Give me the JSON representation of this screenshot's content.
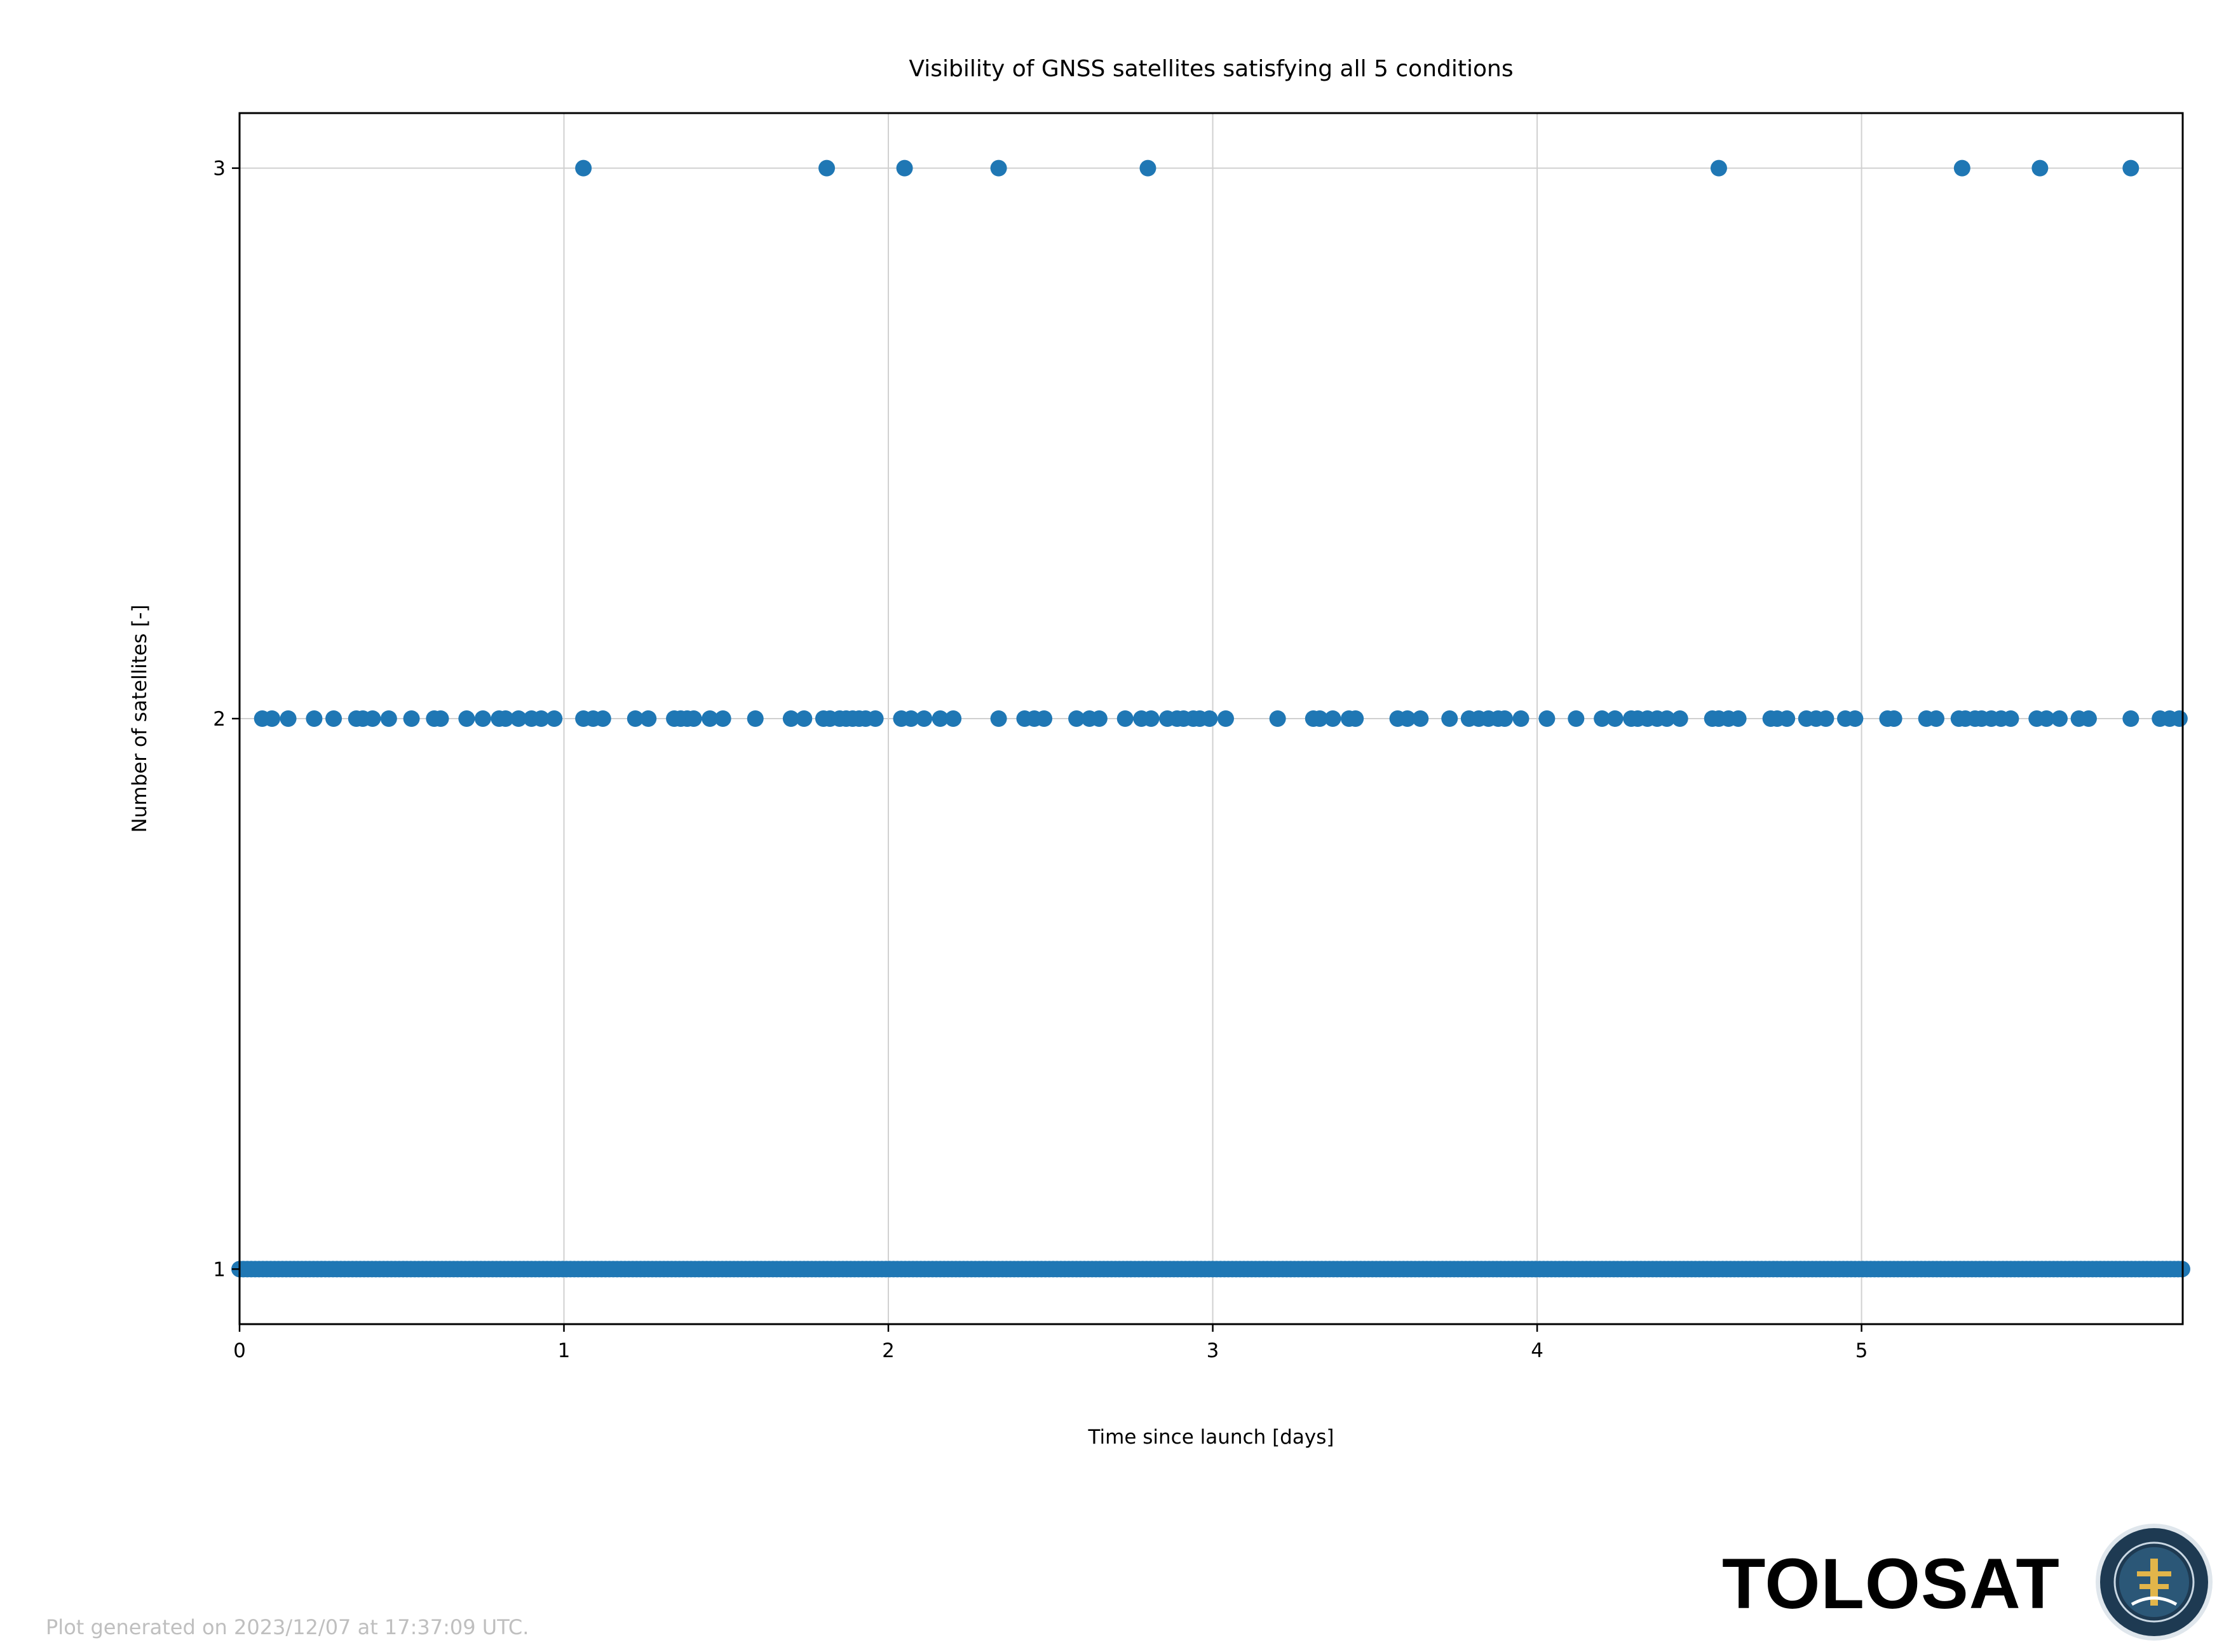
{
  "chart_data": {
    "type": "scatter",
    "title": "Visibility of GNSS satellites satisfying all 5 conditions",
    "xlabel": "Time since launch [days]",
    "ylabel": "Number of satellites [-]",
    "xlim": [
      0,
      5.99
    ],
    "ylim": [
      0.9,
      3.1
    ],
    "xticks": [
      "0",
      "1",
      "2",
      "3",
      "4",
      "5"
    ],
    "yticks": [
      "1",
      "2",
      "3"
    ],
    "grid": true,
    "marker_color": "#1f77b4",
    "series": [
      {
        "values_y3_x": [
          1.06,
          1.81,
          2.05,
          2.34,
          2.8,
          4.56,
          5.31,
          5.55,
          5.83
        ],
        "values_y2_x": [
          0.07,
          0.1,
          0.15,
          0.23,
          0.29,
          0.36,
          0.38,
          0.41,
          0.46,
          0.53,
          0.6,
          0.62,
          0.7,
          0.75,
          0.8,
          0.82,
          0.86,
          0.9,
          0.93,
          0.97,
          1.06,
          1.09,
          1.12,
          1.22,
          1.26,
          1.34,
          1.36,
          1.38,
          1.4,
          1.45,
          1.49,
          1.59,
          1.7,
          1.74,
          1.8,
          1.82,
          1.85,
          1.87,
          1.89,
          1.91,
          1.93,
          1.96,
          2.04,
          2.07,
          2.11,
          2.16,
          2.2,
          2.34,
          2.42,
          2.45,
          2.48,
          2.58,
          2.62,
          2.65,
          2.73,
          2.78,
          2.81,
          2.86,
          2.89,
          2.91,
          2.94,
          2.96,
          2.99,
          3.04,
          3.2,
          3.31,
          3.33,
          3.37,
          3.42,
          3.44,
          3.57,
          3.6,
          3.64,
          3.73,
          3.79,
          3.82,
          3.85,
          3.88,
          3.9,
          3.95,
          4.03,
          4.12,
          4.2,
          4.24,
          4.29,
          4.31,
          4.34,
          4.37,
          4.4,
          4.44,
          4.54,
          4.56,
          4.59,
          4.62,
          4.72,
          4.74,
          4.77,
          4.83,
          4.86,
          4.89,
          4.95,
          4.98,
          5.08,
          5.1,
          5.2,
          5.23,
          5.3,
          5.32,
          5.35,
          5.37,
          5.4,
          5.43,
          5.46,
          5.54,
          5.57,
          5.61,
          5.67,
          5.7,
          5.83,
          5.92,
          5.95,
          5.98
        ],
        "values_y1_x_range": [
          0,
          5.99
        ]
      }
    ]
  },
  "footer": {
    "generated": "Plot generated on 2023/12/07 at 17:37:09 UTC."
  },
  "brand": {
    "name": "TOLOSAT",
    "badge_icon": "tolosat-seal-icon",
    "badge_color": "#1e3a52"
  }
}
